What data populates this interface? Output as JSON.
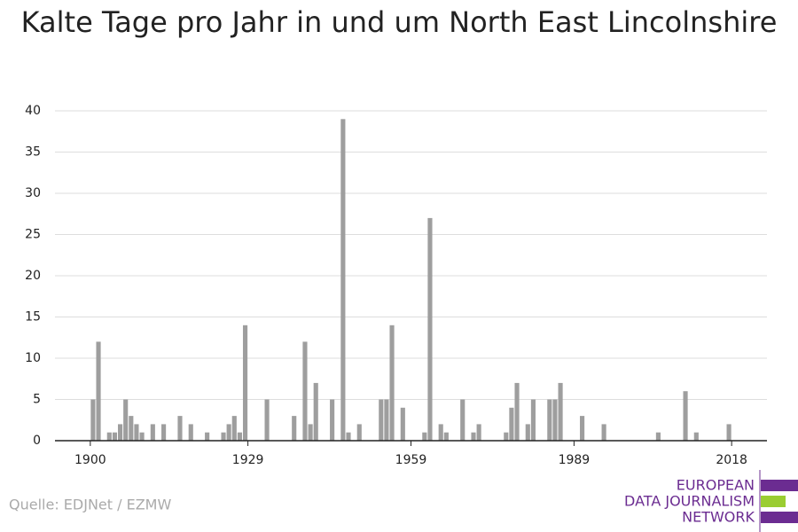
{
  "chart_data": {
    "type": "bar",
    "title": "Kalte Tage pro Jahr in und um North East Lincolnshire",
    "source": "Quelle: EDJNet / EZMW",
    "logo": [
      "EUROPEAN",
      "DATA JOURNALISM",
      "NETWORK"
    ],
    "color": "#9e9e9e",
    "x": [
      1900,
      1901,
      1903,
      1904,
      1905,
      1906,
      1907,
      1908,
      1909,
      1911,
      1913,
      1916,
      1918,
      1921,
      1924,
      1925,
      1926,
      1927,
      1928,
      1932,
      1937,
      1939,
      1940,
      1941,
      1944,
      1946,
      1947,
      1949,
      1953,
      1954,
      1955,
      1957,
      1961,
      1962,
      1964,
      1965,
      1968,
      1970,
      1971,
      1976,
      1977,
      1978,
      1980,
      1981,
      1984,
      1985,
      1986,
      1990,
      1994,
      2004,
      2009,
      2011,
      2017
    ],
    "values": [
      5,
      12,
      1,
      1,
      2,
      5,
      3,
      2,
      1,
      2,
      2,
      3,
      2,
      1,
      1,
      2,
      3,
      1,
      14,
      5,
      3,
      12,
      2,
      7,
      5,
      39,
      1,
      2,
      5,
      5,
      14,
      4,
      1,
      27,
      2,
      1,
      5,
      1,
      2,
      1,
      4,
      7,
      2,
      5,
      5,
      5,
      7,
      3,
      2,
      1,
      6,
      1,
      2
    ],
    "xlim": [
      1893.5,
      2024.5
    ],
    "xticks": [
      1900,
      1929,
      1959,
      1989,
      2018
    ],
    "ylim": [
      0,
      40
    ],
    "yticks": [
      0,
      5,
      10,
      15,
      20,
      25,
      30,
      35,
      40
    ],
    "grid": true
  }
}
